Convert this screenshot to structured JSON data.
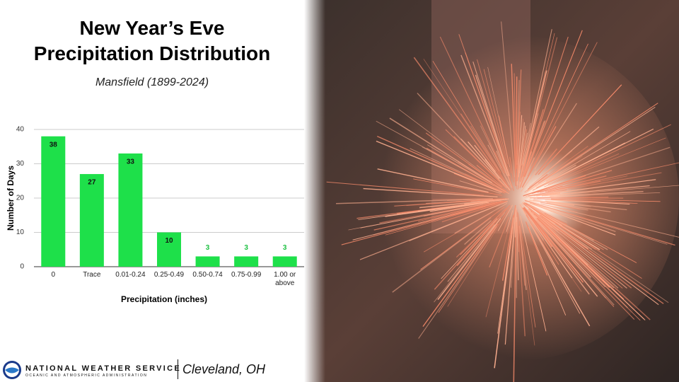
{
  "chart_data": {
    "type": "bar",
    "title": [
      "New Year’s Eve",
      "Precipitation Distribution"
    ],
    "subtitle": "Mansfield (1899-2024)",
    "x_label": "Precipitation (inches)",
    "y_label": "Number of Days",
    "categories": [
      "0",
      "Trace",
      "0.01-0.24",
      "0.25-0.49",
      "0.50-0.74",
      "0.75-0.99",
      "1.00 or above"
    ],
    "values": [
      38,
      27,
      33,
      10,
      3,
      3,
      3
    ],
    "color": "#1ee04a",
    "ylim": [
      0,
      40
    ],
    "yticks": [
      0,
      10,
      20,
      30,
      40
    ],
    "grid": true
  },
  "footer": {
    "agency": "NATIONAL WEATHER SERVICE",
    "agency_sub": "OCEANIC AND ATMOSPHERIC ADMINISTRATION",
    "office": "Cleveland, OH"
  }
}
